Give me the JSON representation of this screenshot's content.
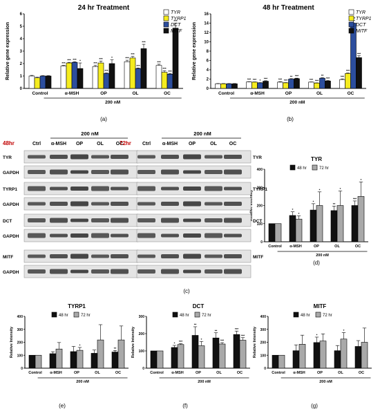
{
  "panel_labels": [
    "(a)",
    "(b)",
    "(c)",
    "(d)",
    "(e)",
    "(f)",
    "(g)"
  ],
  "gene_legend": [
    "TYR",
    "TYRP1",
    "DCT",
    "MITF"
  ],
  "gene_colors": [
    "#ffffff",
    "#f5ec1f",
    "#2c4e9e",
    "#111111"
  ],
  "time_legend": [
    "48 hr",
    "72 hr"
  ],
  "time_colors": [
    "#111111",
    "#a9a9a9"
  ],
  "dose_label": "200 nM",
  "blot": {
    "time_48": "48hr",
    "time_72": "72hr",
    "time_color": "#c00000",
    "dose": "200 nM",
    "lanes": [
      "Ctrl",
      "α-MSH",
      "OP",
      "OL",
      "OC"
    ],
    "rows": [
      "TYR",
      "GAPDH",
      "TYRP1",
      "GAPDH",
      "DCT",
      "GAPDH",
      "MITF",
      "GAPDH"
    ]
  },
  "chart_data": [
    {
      "panel": "a",
      "type": "bar",
      "title": "24 hr Treatment",
      "ylabel": "Relative gene expression",
      "ylim": [
        0,
        6
      ],
      "yticks": [
        "0",
        "1",
        "2",
        "3",
        "4",
        "5",
        "6"
      ],
      "categories": [
        "Control",
        "α-MSH",
        "OP",
        "OL",
        "OC"
      ],
      "series": [
        {
          "name": "TYR",
          "values": [
            1.0,
            1.8,
            1.75,
            2.15,
            1.85
          ],
          "err": [
            0.05,
            0.05,
            0.1,
            0.12,
            0.1
          ],
          "sig": [
            "",
            "***",
            "***",
            "***",
            "***"
          ]
        },
        {
          "name": "TYRP1",
          "values": [
            0.85,
            2.05,
            2.05,
            2.45,
            1.3
          ],
          "err": [
            0.05,
            0.05,
            0.15,
            0.12,
            0.12
          ],
          "sig": [
            "",
            "***",
            "***",
            "***",
            "***"
          ]
        },
        {
          "name": "DCT",
          "values": [
            1.0,
            2.1,
            1.2,
            1.6,
            1.15
          ],
          "err": [
            0.03,
            0.05,
            0.05,
            0.05,
            0.05
          ],
          "sig": [
            "",
            "***",
            "***",
            "***",
            "***"
          ]
        },
        {
          "name": "MITF",
          "values": [
            1.0,
            1.6,
            2.0,
            3.2,
            4.85
          ],
          "err": [
            0.03,
            0.45,
            0.3,
            0.35,
            0.4
          ],
          "sig": [
            "",
            "*",
            "*",
            "***",
            "***"
          ]
        }
      ]
    },
    {
      "panel": "b",
      "type": "bar",
      "title": "48 hr Treatment",
      "ylabel": "Relative gene expression",
      "ylim": [
        0,
        16
      ],
      "yticks": [
        "0",
        "2",
        "4",
        "6",
        "8",
        "10",
        "12",
        "14",
        "16"
      ],
      "categories": [
        "Control",
        "α-MSH",
        "OP",
        "OL",
        "OC"
      ],
      "series": [
        {
          "name": "TYR",
          "values": [
            1.0,
            1.4,
            1.35,
            1.35,
            1.9
          ],
          "err": [
            0.05,
            0.05,
            0.1,
            0.05,
            0.15
          ],
          "sig": [
            "",
            "***",
            "***",
            "***",
            "***"
          ]
        },
        {
          "name": "TYRP1",
          "values": [
            1.0,
            1.35,
            1.2,
            1.15,
            3.2
          ],
          "err": [
            0.05,
            0.05,
            0.05,
            0.05,
            0.1
          ],
          "sig": [
            "",
            "***",
            "***",
            "***",
            "***"
          ]
        },
        {
          "name": "DCT",
          "values": [
            1.0,
            1.2,
            2.0,
            2.2,
            14.0
          ],
          "err": [
            0.05,
            0.05,
            0.1,
            0.1,
            0.6
          ],
          "sig": [
            "",
            "*",
            "**",
            "**",
            "***"
          ]
        },
        {
          "name": "MITF",
          "values": [
            1.0,
            1.55,
            2.1,
            1.6,
            6.6
          ],
          "err": [
            0.05,
            0.1,
            0.1,
            0.1,
            0.4
          ],
          "sig": [
            "",
            "***",
            "***",
            "***",
            "***"
          ]
        }
      ]
    },
    {
      "panel": "d",
      "type": "bar",
      "title": "TYR",
      "ylabel": "Relative Intensity",
      "ylim": [
        0,
        400
      ],
      "yticks": [
        "0",
        "100",
        "200",
        "300",
        "400"
      ],
      "categories": [
        "Control",
        "α-MSH",
        "OP",
        "OL",
        "OC"
      ],
      "series": [
        {
          "name": "48 hr",
          "values": [
            100,
            145,
            175,
            172,
            200
          ],
          "err": [
            0,
            20,
            35,
            25,
            25
          ],
          "sig": [
            "",
            "*",
            "*",
            "**",
            "***"
          ]
        },
        {
          "name": "72 hr",
          "values": [
            100,
            125,
            200,
            200,
            250
          ],
          "err": [
            0,
            18,
            75,
            80,
            80
          ],
          "sig": [
            "",
            "*",
            "*",
            "*",
            "*"
          ]
        }
      ]
    },
    {
      "panel": "e",
      "type": "bar",
      "title": "TYRP1",
      "ylabel": "Relative Intensity",
      "ylim": [
        0,
        400
      ],
      "yticks": [
        "0",
        "100",
        "200",
        "300",
        "400"
      ],
      "categories": [
        "Control",
        "α-MSH",
        "OP",
        "OL",
        "OC"
      ],
      "series": [
        {
          "name": "48 hr",
          "values": [
            100,
            112,
            128,
            115,
            125
          ],
          "err": [
            0,
            15,
            40,
            25,
            12
          ],
          "sig": [
            "",
            "",
            "",
            "",
            "**"
          ]
        },
        {
          "name": "72 hr",
          "values": [
            100,
            148,
            138,
            218,
            218
          ],
          "err": [
            0,
            50,
            22,
            118,
            108
          ],
          "sig": [
            "",
            "",
            "*",
            "",
            ""
          ]
        }
      ]
    },
    {
      "panel": "f",
      "type": "bar",
      "title": "DCT",
      "ylabel": "Relative Intensity",
      "ylim": [
        0,
        300
      ],
      "yticks": [
        "0",
        "100",
        "200",
        "300"
      ],
      "categories": [
        "Control",
        "α-MSH",
        "OP",
        "OL",
        "OC"
      ],
      "series": [
        {
          "name": "48 hr",
          "values": [
            100,
            120,
            190,
            175,
            195
          ],
          "err": [
            0,
            12,
            50,
            30,
            20
          ],
          "sig": [
            "",
            "*",
            "**",
            "**",
            "***"
          ]
        },
        {
          "name": "72 hr",
          "values": [
            100,
            137,
            130,
            140,
            162
          ],
          "err": [
            0,
            5,
            25,
            8,
            15
          ],
          "sig": [
            "",
            "***",
            "*",
            "***",
            "***"
          ]
        }
      ]
    },
    {
      "panel": "g",
      "type": "bar",
      "title": "MITF",
      "ylabel": "Relative Intensity",
      "ylim": [
        0,
        400
      ],
      "yticks": [
        "0",
        "100",
        "200",
        "300",
        "400"
      ],
      "categories": [
        "Control",
        "α-MSH",
        "OP",
        "OL",
        "OC"
      ],
      "series": [
        {
          "name": "48 hr",
          "values": [
            100,
            135,
            198,
            135,
            168
          ],
          "err": [
            0,
            45,
            42,
            40,
            45
          ],
          "sig": [
            "",
            "",
            "*",
            "",
            ""
          ]
        },
        {
          "name": "72 hr",
          "values": [
            100,
            185,
            210,
            225,
            200
          ],
          "err": [
            0,
            70,
            55,
            50,
            110
          ],
          "sig": [
            "",
            "",
            "",
            "*",
            ""
          ]
        }
      ]
    }
  ]
}
